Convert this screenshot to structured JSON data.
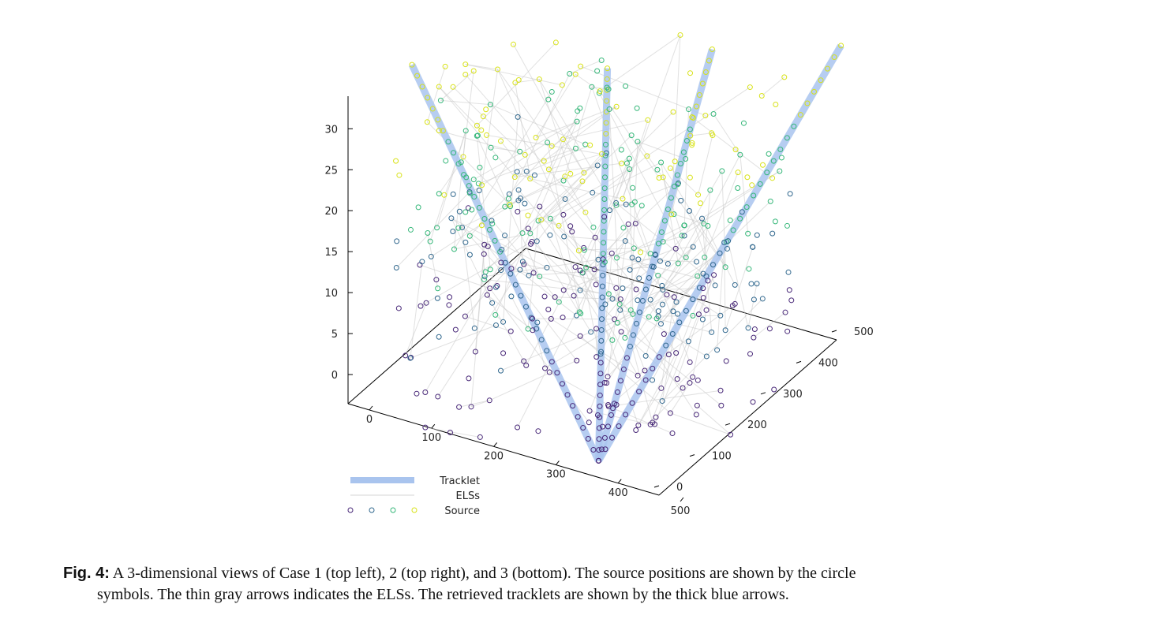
{
  "chart_data": {
    "type": "scatter",
    "projection": "3d",
    "axes": {
      "x": {
        "range": [
          0,
          500
        ],
        "ticks": [
          "0",
          "100",
          "200",
          "300",
          "400",
          "500"
        ]
      },
      "y": {
        "range": [
          0,
          500
        ],
        "ticks": [
          "0",
          "100",
          "200",
          "300",
          "400",
          "500"
        ]
      },
      "z": {
        "range": [
          0,
          30
        ],
        "ticks": [
          "0",
          "5",
          "10",
          "15",
          "20",
          "25",
          "30"
        ]
      }
    },
    "legend": {
      "position": "bottom-left",
      "entries": [
        "Tracklet",
        "ELSs",
        "Source"
      ]
    },
    "tracklets": [
      {
        "start": [
          380,
          40,
          0
        ],
        "end": [
          -40,
          250,
          31
        ]
      },
      {
        "start": [
          380,
          40,
          0
        ],
        "end": [
          200,
          380,
          31
        ]
      },
      {
        "start": [
          380,
          40,
          0
        ],
        "end": [
          300,
          500,
          31
        ]
      },
      {
        "start": [
          380,
          40,
          0
        ],
        "end": [
          450,
          600,
          31
        ]
      }
    ],
    "colors": {
      "tracklet": "#a9c4ee",
      "els": "#c9c9c9",
      "source_low": "#482878",
      "source_mid1": "#31688e",
      "source_mid2": "#35b779",
      "source_high": "#d8e219"
    }
  },
  "caption": {
    "label": "Fig. 4:",
    "line1": "A 3-dimensional views of Case 1 (top left), 2 (top right), and 3 (bottom).  The source positions are shown by the circle",
    "line2": "symbols. The thin gray arrows indicates the ELSs. The retrieved tracklets are shown by the thick blue arrows."
  }
}
